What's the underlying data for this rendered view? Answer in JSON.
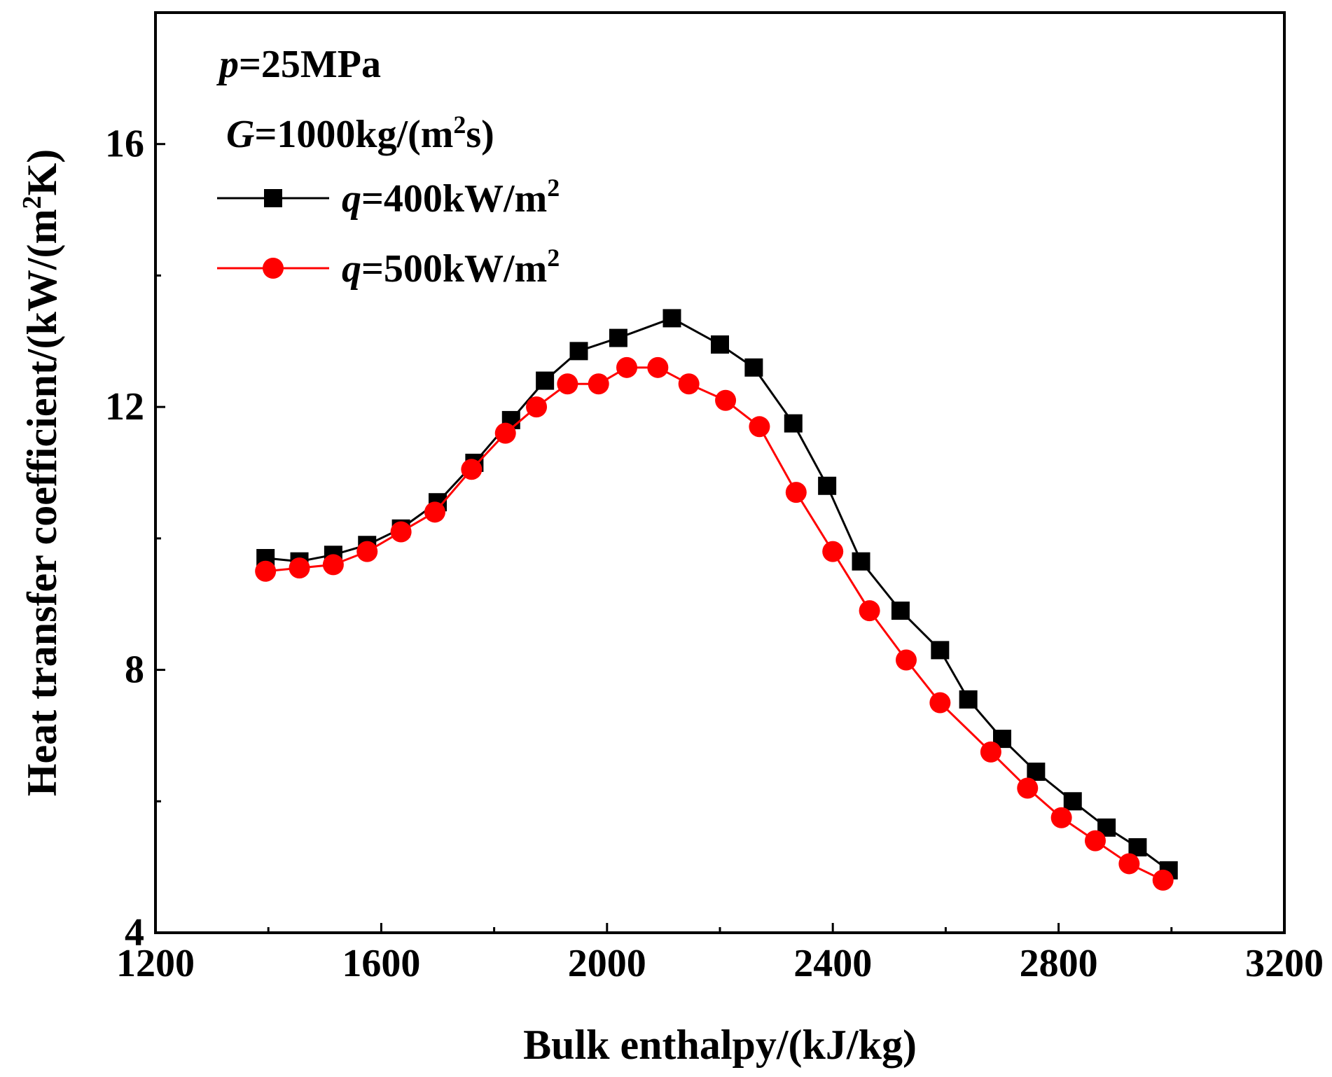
{
  "chart_data": {
    "type": "line",
    "xlabel": "Bulk enthalpy/(kJ/kg)",
    "ylabel": "Heat transfer coefficient/(kW/(m",
    "ylabel_sup": "2",
    "ylabel_end": "K)",
    "xlim": [
      1200,
      3200
    ],
    "ylim": [
      4,
      18
    ],
    "xticks": [
      1200,
      1600,
      2000,
      2400,
      2800,
      3200
    ],
    "yticks": [
      4,
      8,
      12,
      16
    ],
    "xtick_labels": [
      "1200",
      "1600",
      "2000",
      "2400",
      "2800",
      "3200"
    ],
    "ytick_labels": [
      "4",
      "8",
      "12",
      "16"
    ],
    "grid": false,
    "legend_position": "top-left",
    "annotations": [
      {
        "italic": "p",
        "text": "=25MPa"
      },
      {
        "italic": "G",
        "text": "=1000kg/(m",
        "sup": "2",
        "end": "s)"
      }
    ],
    "series": [
      {
        "name_italic": "q",
        "name": "=400kW/m",
        "name_sup": "2",
        "color": "#000000",
        "marker": "square",
        "x": [
          1395,
          1455,
          1515,
          1575,
          1635,
          1700,
          1765,
          1830,
          1890,
          1950,
          2020,
          2115,
          2200,
          2260,
          2330,
          2390,
          2450,
          2520,
          2590,
          2640,
          2700,
          2760,
          2825,
          2885,
          2940,
          2995
        ],
        "y": [
          9.7,
          9.65,
          9.75,
          9.9,
          10.15,
          10.55,
          11.15,
          11.8,
          12.4,
          12.85,
          13.05,
          13.35,
          12.95,
          12.6,
          11.75,
          10.8,
          9.65,
          8.9,
          8.3,
          7.55,
          6.95,
          6.45,
          6.0,
          5.6,
          5.3,
          4.95
        ]
      },
      {
        "name_italic": "q",
        "name": "=500kW/m",
        "name_sup": "2",
        "color": "#ff0000",
        "marker": "circle",
        "x": [
          1395,
          1455,
          1515,
          1575,
          1635,
          1695,
          1760,
          1820,
          1875,
          1930,
          1985,
          2035,
          2090,
          2145,
          2210,
          2270,
          2335,
          2400,
          2465,
          2530,
          2590,
          2680,
          2745,
          2805,
          2865,
          2925,
          2985
        ],
        "y": [
          9.5,
          9.55,
          9.6,
          9.8,
          10.1,
          10.4,
          11.05,
          11.6,
          12.0,
          12.35,
          12.35,
          12.6,
          12.6,
          12.35,
          12.1,
          11.7,
          10.7,
          9.8,
          8.9,
          8.15,
          7.5,
          6.75,
          6.2,
          5.75,
          5.4,
          5.05,
          4.8
        ]
      }
    ]
  }
}
